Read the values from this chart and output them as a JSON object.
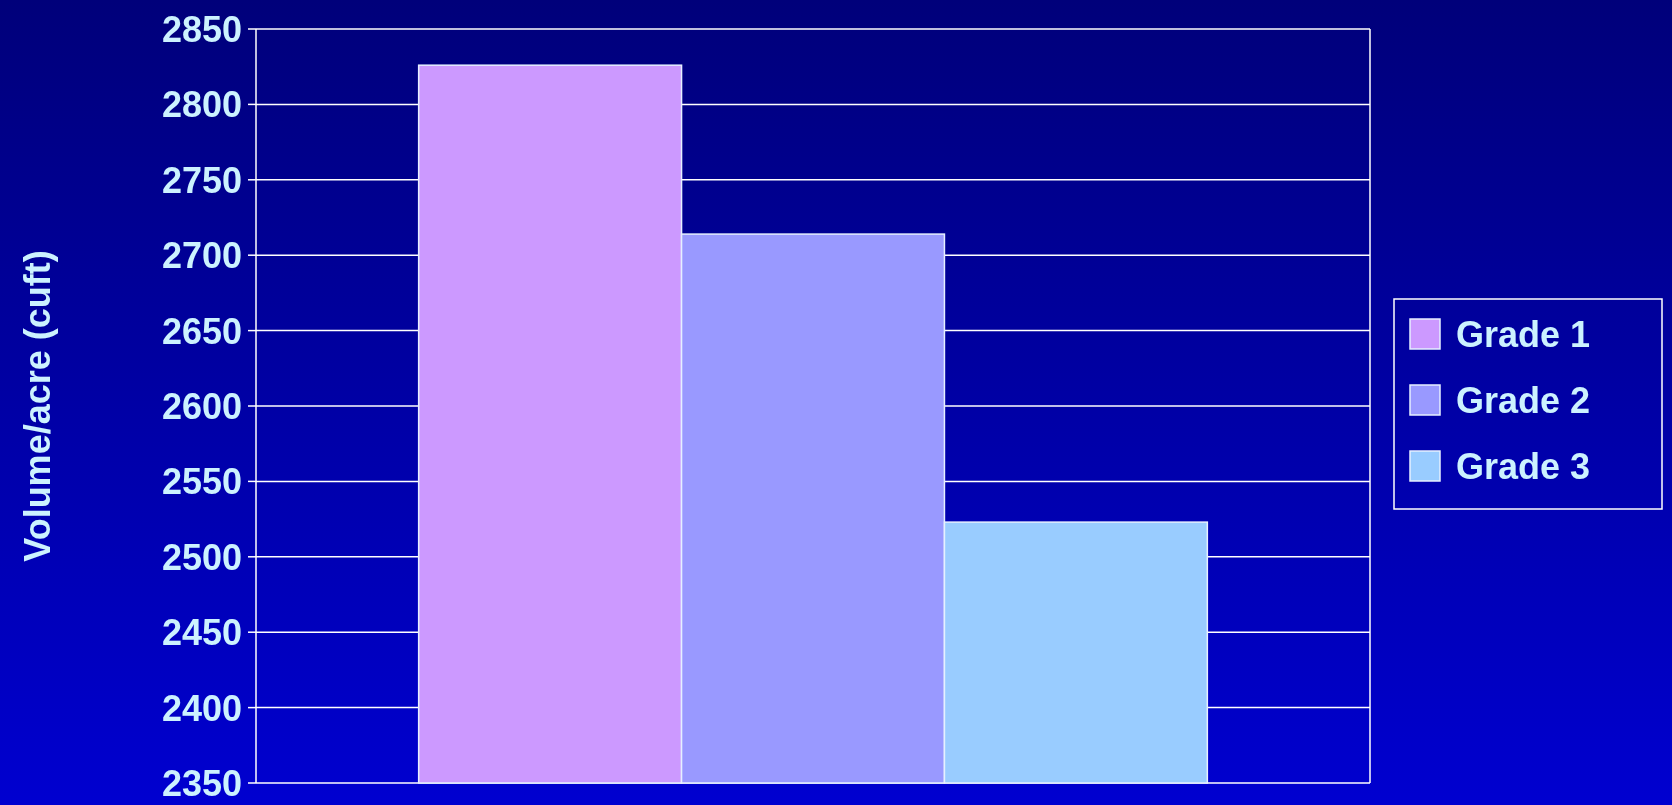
{
  "chart_data": {
    "type": "bar",
    "ylabel": "Volume/acre (cuft)",
    "categories": [
      null
    ],
    "series": [
      {
        "name": "Grade 1",
        "color": "#cc99ff",
        "values": [
          2826
        ]
      },
      {
        "name": "Grade 2",
        "color": "#9999ff",
        "values": [
          2714
        ]
      },
      {
        "name": "Grade 3",
        "color": "#99ccff",
        "values": [
          2523
        ]
      }
    ],
    "ylim": [
      2350,
      2850
    ],
    "yticks": [
      2350,
      2400,
      2450,
      2500,
      2550,
      2600,
      2650,
      2700,
      2750,
      2800,
      2850
    ],
    "grid": "y",
    "legend": "right"
  }
}
